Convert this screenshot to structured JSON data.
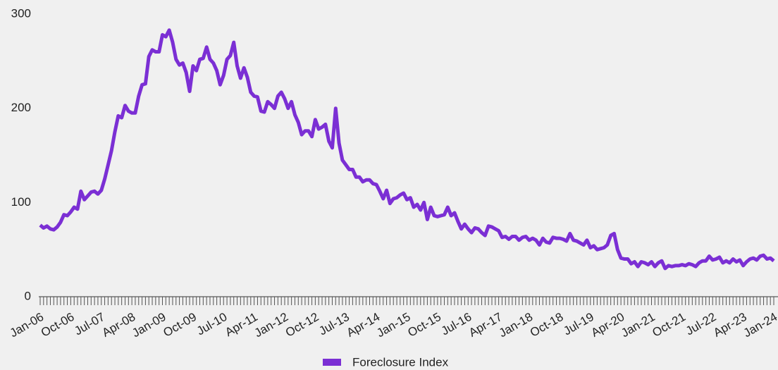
{
  "chart_data": {
    "type": "line",
    "categories": [
      "Jan-06",
      null,
      null,
      null,
      null,
      null,
      null,
      null,
      null,
      "Oct-06",
      null,
      null,
      null,
      null,
      null,
      null,
      null,
      null,
      "Jul-07",
      null,
      null,
      null,
      null,
      null,
      null,
      null,
      null,
      "Apr-08",
      null,
      null,
      null,
      null,
      null,
      null,
      null,
      null,
      "Jan-09",
      null,
      null,
      null,
      null,
      null,
      null,
      null,
      null,
      "Oct-09",
      null,
      null,
      null,
      null,
      null,
      null,
      null,
      null,
      "Jul-10",
      null,
      null,
      null,
      null,
      null,
      null,
      null,
      null,
      "Apr-11",
      null,
      null,
      null,
      null,
      null,
      null,
      null,
      null,
      "Jan-12",
      null,
      null,
      null,
      null,
      null,
      null,
      null,
      null,
      "Oct-12",
      null,
      null,
      null,
      null,
      null,
      null,
      null,
      null,
      "Jul-13",
      null,
      null,
      null,
      null,
      null,
      null,
      null,
      null,
      "Apr-14",
      null,
      null,
      null,
      null,
      null,
      null,
      null,
      null,
      "Jan-15",
      null,
      null,
      null,
      null,
      null,
      null,
      null,
      null,
      "Oct-15",
      null,
      null,
      null,
      null,
      null,
      null,
      null,
      null,
      "Jul-16",
      null,
      null,
      null,
      null,
      null,
      null,
      null,
      null,
      "Apr-17",
      null,
      null,
      null,
      null,
      null,
      null,
      null,
      null,
      "Jan-18",
      null,
      null,
      null,
      null,
      null,
      null,
      null,
      null,
      "Oct-18",
      null,
      null,
      null,
      null,
      null,
      null,
      null,
      null,
      "Jul-19",
      null,
      null,
      null,
      null,
      null,
      null,
      null,
      null,
      "Apr-20",
      null,
      null,
      null,
      null,
      null,
      null,
      null,
      null,
      "Jan-21",
      null,
      null,
      null,
      null,
      null,
      null,
      null,
      null,
      "Oct-21",
      null,
      null,
      null,
      null,
      null,
      null,
      null,
      null,
      "Jul-22",
      null,
      null,
      null,
      null,
      null,
      null,
      null,
      null,
      "Apr-23",
      null,
      null,
      null,
      null,
      null,
      null,
      null,
      null,
      "Jan-24"
    ],
    "series": [
      {
        "name": "Foreclosure Index",
        "color": "#7b2fd4",
        "values": [
          76,
          73,
          75,
          72,
          71,
          74,
          79,
          87,
          86,
          90,
          95,
          93,
          112,
          103,
          107,
          111,
          112,
          109,
          113,
          125,
          140,
          155,
          175,
          192,
          190,
          203,
          197,
          195,
          195,
          213,
          225,
          226,
          255,
          262,
          260,
          260,
          278,
          276,
          283,
          270,
          252,
          246,
          248,
          238,
          218,
          245,
          240,
          252,
          253,
          265,
          252,
          248,
          240,
          225,
          235,
          252,
          256,
          270,
          245,
          232,
          243,
          233,
          217,
          213,
          212,
          197,
          196,
          207,
          204,
          200,
          213,
          217,
          210,
          200,
          207,
          193,
          185,
          172,
          176,
          176,
          170,
          188,
          178,
          180,
          183,
          165,
          158,
          200,
          163,
          145,
          140,
          135,
          135,
          127,
          127,
          122,
          124,
          124,
          120,
          119,
          112,
          104,
          113,
          99,
          104,
          105,
          108,
          110,
          103,
          105,
          95,
          98,
          92,
          100,
          82,
          95,
          86,
          85,
          86,
          87,
          95,
          86,
          89,
          80,
          72,
          77,
          72,
          68,
          73,
          72,
          68,
          65,
          75,
          74,
          72,
          70,
          63,
          64,
          61,
          64,
          64,
          60,
          63,
          64,
          60,
          62,
          60,
          55,
          62,
          58,
          57,
          63,
          62,
          62,
          61,
          59,
          67,
          60,
          59,
          57,
          55,
          60,
          52,
          54,
          50,
          51,
          52,
          55,
          65,
          67,
          50,
          41,
          40,
          40,
          35,
          37,
          32,
          37,
          36,
          34,
          37,
          32,
          36,
          38,
          30,
          33,
          32,
          33,
          33,
          34,
          33,
          35,
          34,
          32,
          36,
          38,
          38,
          43,
          39,
          40,
          42,
          36,
          38,
          36,
          40,
          37,
          39,
          33,
          37,
          40,
          41,
          39,
          43,
          44,
          40,
          41,
          38
        ]
      }
    ],
    "ylim": [
      0,
      300
    ],
    "yticks": [
      0,
      100,
      200,
      300
    ],
    "legend": "bottom"
  }
}
